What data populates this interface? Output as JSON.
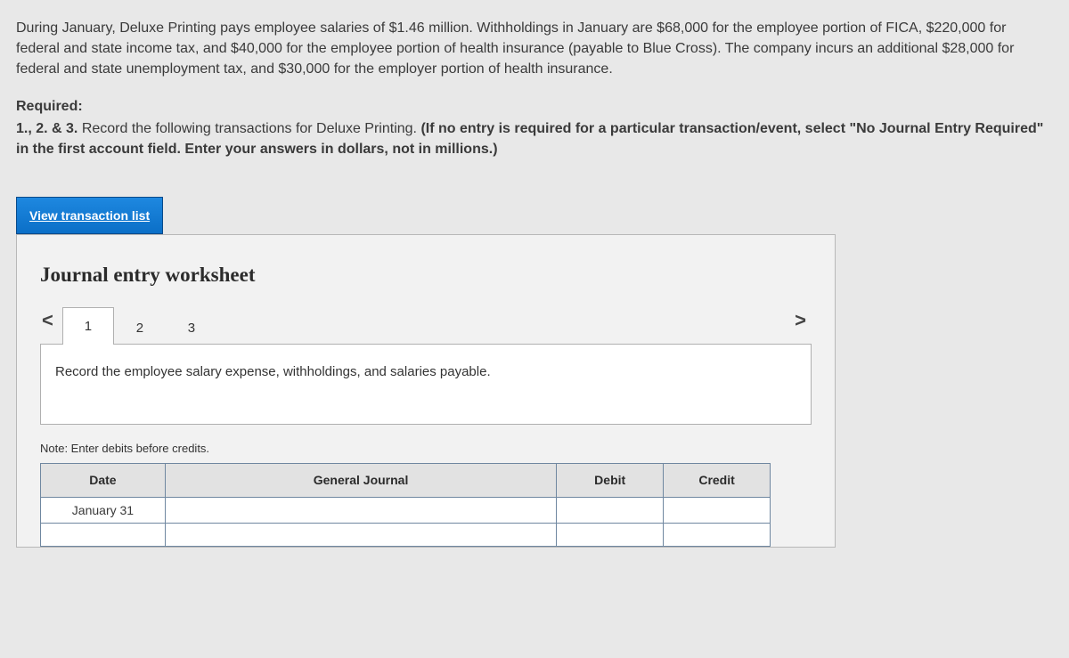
{
  "problem": {
    "paragraph": "During January, Deluxe Printing pays employee salaries of $1.46 million. Withholdings in January are $68,000 for the employee portion of FICA, $220,000 for federal and state income tax, and $40,000 for the employee portion of health insurance (payable to Blue Cross). The company incurs an additional $28,000 for federal and state unemployment tax, and $30,000 for the employer portion of health insurance."
  },
  "required": {
    "label": "Required:",
    "lead": "1., 2. & 3. ",
    "plain": "Record the following transactions for Deluxe Printing. ",
    "bold": "(If no entry is required for a particular transaction/event, select \"No Journal Entry Required\" in the first account field. Enter your answers in dollars, not in millions.)"
  },
  "viewButton": "View transaction list",
  "worksheet": {
    "title": "Journal entry worksheet",
    "tabs": [
      "1",
      "2",
      "3"
    ],
    "activeTab": 0,
    "instruction": "Record the employee salary expense, withholdings, and salaries payable.",
    "note": "Note: Enter debits before credits.",
    "headers": {
      "date": "Date",
      "gj": "General Journal",
      "debit": "Debit",
      "credit": "Credit"
    },
    "rows": [
      {
        "date": "January 31",
        "gj": "",
        "debit": "",
        "credit": ""
      },
      {
        "date": "",
        "gj": "",
        "debit": "",
        "credit": ""
      }
    ]
  },
  "colors": {
    "pageBg": "#e8e8e8",
    "btnBg": "#0b6fc7",
    "cellBorder": "#6f87a0",
    "headerBg": "#e2e2e2",
    "panelBorder": "#b0b0b0"
  }
}
